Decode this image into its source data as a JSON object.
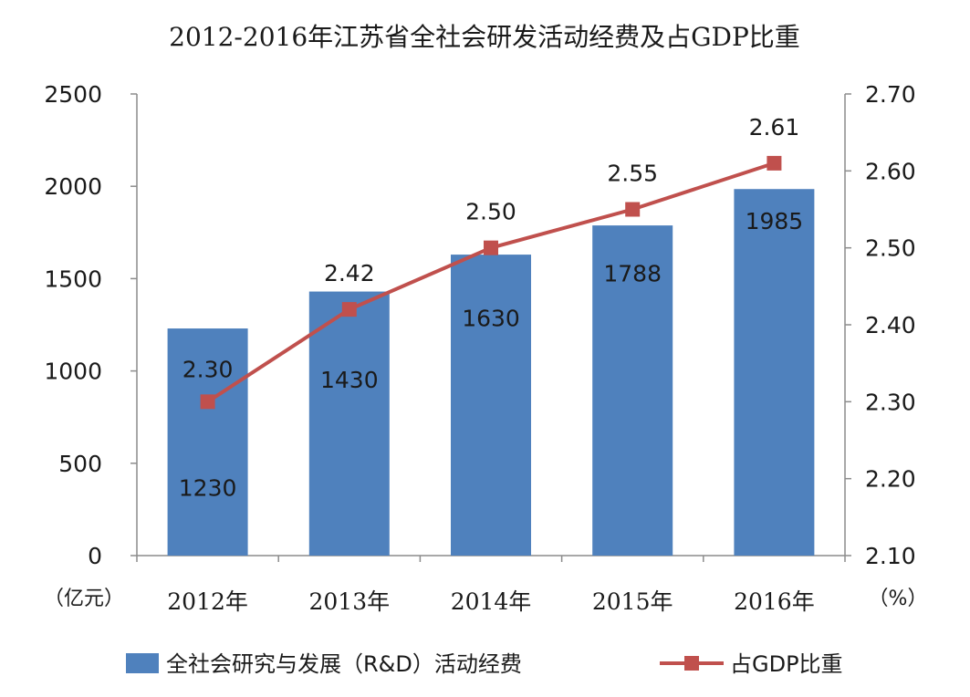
{
  "chart_data": {
    "type": "bar+line",
    "title": "2012-2016年江苏省全社会研发活动经费及占GDP比重",
    "categories": [
      "2012年",
      "2013年",
      "2014年",
      "2015年",
      "2016年"
    ],
    "series": [
      {
        "name": "全社会研究与发展（R&D）活动经费",
        "type": "bar",
        "axis": "left",
        "values": [
          1230,
          1430,
          1630,
          1788,
          1985
        ],
        "color": "#4f81bd"
      },
      {
        "name": "占GDP比重",
        "type": "line",
        "axis": "right",
        "values": [
          2.3,
          2.42,
          2.5,
          2.55,
          2.61
        ],
        "value_labels": [
          "2.30",
          "2.42",
          "2.50",
          "2.55",
          "2.61"
        ],
        "color": "#c0504d"
      }
    ],
    "left_axis": {
      "unit_label": "（亿元）",
      "ylim": [
        0,
        2500
      ],
      "ticks": [
        0,
        500,
        1000,
        1500,
        2000,
        2500
      ],
      "tick_labels": [
        "0",
        "500",
        "1000",
        "1500",
        "2000",
        "2500"
      ]
    },
    "right_axis": {
      "unit_label": "（%）",
      "ylim": [
        2.1,
        2.7
      ],
      "ticks": [
        2.1,
        2.2,
        2.3,
        2.4,
        2.5,
        2.6,
        2.7
      ],
      "tick_labels": [
        "2.10",
        "2.20",
        "2.30",
        "2.40",
        "2.50",
        "2.60",
        "2.70"
      ]
    },
    "grid": false,
    "legend_position": "bottom"
  }
}
